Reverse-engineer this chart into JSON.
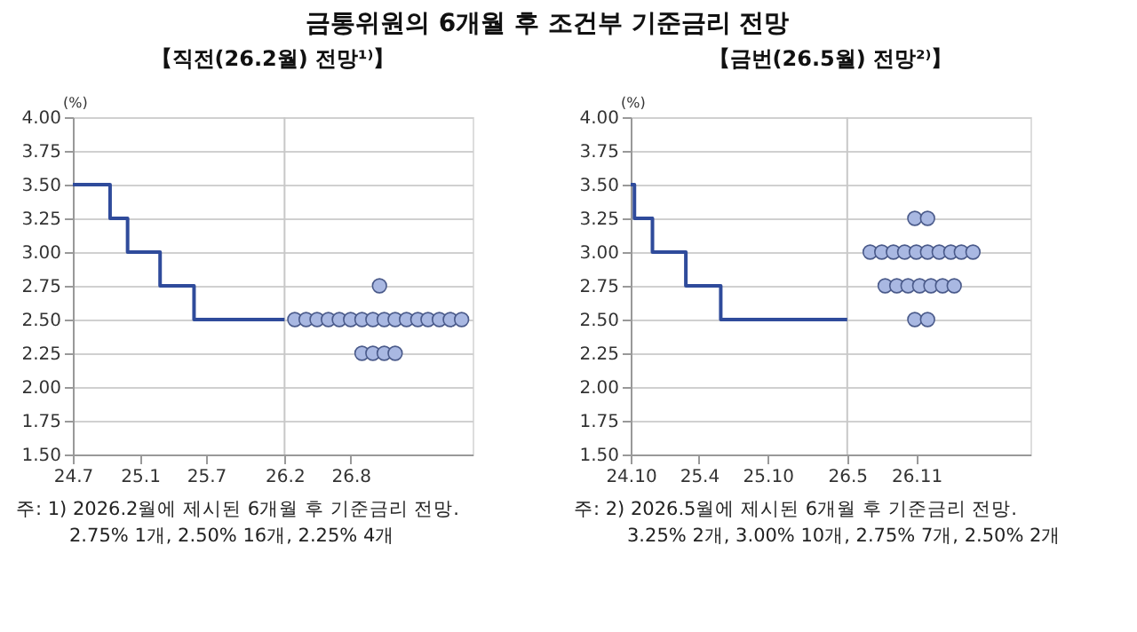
{
  "chart_data": [
    {
      "type": "step",
      "title": "금통위원의 6개월 후 조건부 기준금리 전망",
      "subtitle": "【직전(26.2월) 전망¹⁾】",
      "ylabel": "(%)",
      "xlim": [
        "2024-07-01",
        "2027-07-01"
      ],
      "xticks": [
        {
          "value": "2024-07",
          "label": "24.7"
        },
        {
          "value": "2025-01",
          "label": "25.1"
        },
        {
          "value": "2025-07",
          "label": "25.7"
        },
        {
          "value": "2026-02",
          "label": "26.2"
        },
        {
          "value": "2026-08",
          "label": "26.8"
        }
      ],
      "ylim": [
        1.5,
        4.0
      ],
      "yticks": [
        {
          "value": 1.5,
          "label": "1.50"
        },
        {
          "value": 1.75,
          "label": "1.75"
        },
        {
          "value": 2.0,
          "label": "2.00"
        },
        {
          "value": 2.25,
          "label": "2.25"
        },
        {
          "value": 2.5,
          "label": "2.50"
        },
        {
          "value": 2.75,
          "label": "2.75"
        },
        {
          "value": 3.0,
          "label": "3.00"
        },
        {
          "value": 3.25,
          "label": "3.25"
        },
        {
          "value": 3.5,
          "label": "3.50"
        },
        {
          "value": 3.75,
          "label": "3.75"
        },
        {
          "value": 4.0,
          "label": "4.00"
        }
      ],
      "grid": "y",
      "ref_lines": [
        {
          "axis": "x",
          "value": "2026-02",
          "color": "#c8c8c8"
        }
      ],
      "series": [
        {
          "color": "#2f4b9b",
          "x": [
            "2024-07-01",
            "2024-10-11",
            "2024-11-28",
            "2025-02-25",
            "2025-05-29",
            "2026-02-01"
          ],
          "values": [
            3.5,
            3.25,
            3.0,
            2.75,
            2.5,
            2.5
          ]
        },
        {
          "type": "scatter",
          "color": "#a9b8e2",
          "marker": "circle",
          "x": [
            "2026-03",
            "2026-04",
            "2026-05",
            "2026-06",
            "2026-07",
            "2026-08",
            "2026-09",
            "2026-10",
            "2026-11",
            "2026-12",
            "2027-01",
            "2027-02",
            "2027-03",
            "2027-04",
            "2027-05",
            "2027-06",
            "2026-10-19",
            "2026-09",
            "2026-10",
            "2026-11",
            "2026-12"
          ],
          "values": [
            2.5,
            2.5,
            2.5,
            2.5,
            2.5,
            2.5,
            2.5,
            2.5,
            2.5,
            2.5,
            2.5,
            2.5,
            2.5,
            2.5,
            2.5,
            2.5,
            2.75,
            2.25,
            2.25,
            2.25,
            2.25
          ]
        }
      ],
      "annotations": [
        "주: 1) 2026.2월에 제시된 6개월 후 기준금리 전망.",
        "2.75% 1개,  2.50% 16개,  2.25% 4개"
      ]
    },
    {
      "type": "step",
      "subtitle": "【금번(26.5월) 전망²⁾】",
      "ylabel": "(%)",
      "xlim": [
        "2024-10-01",
        "2027-09-01"
      ],
      "xticks": [
        {
          "value": "2024-10",
          "label": "24.10"
        },
        {
          "value": "2025-04",
          "label": "25.4"
        },
        {
          "value": "2025-10",
          "label": "25.10"
        },
        {
          "value": "2026-05",
          "label": "26.5"
        },
        {
          "value": "2026-11",
          "label": "26.11"
        }
      ],
      "ylim": [
        1.5,
        4.0
      ],
      "yticks": [
        {
          "value": 1.5,
          "label": "1.50"
        },
        {
          "value": 1.75,
          "label": "1.75"
        },
        {
          "value": 2.0,
          "label": "2.00"
        },
        {
          "value": 2.25,
          "label": "2.25"
        },
        {
          "value": 2.5,
          "label": "2.50"
        },
        {
          "value": 2.75,
          "label": "2.75"
        },
        {
          "value": 3.0,
          "label": "3.00"
        },
        {
          "value": 3.25,
          "label": "3.25"
        },
        {
          "value": 3.5,
          "label": "3.50"
        },
        {
          "value": 3.75,
          "label": "3.75"
        },
        {
          "value": 4.0,
          "label": "4.00"
        }
      ],
      "grid": "y",
      "ref_lines": [
        {
          "axis": "x",
          "value": "2026-05",
          "color": "#c8c8c8"
        }
      ],
      "series": [
        {
          "color": "#2f4b9b",
          "x": [
            "2024-10-01",
            "2024-10-11",
            "2024-11-28",
            "2025-02-25",
            "2025-05-29",
            "2026-05-01"
          ],
          "values": [
            3.5,
            3.25,
            3.0,
            2.75,
            2.5,
            2.5
          ]
        },
        {
          "type": "scatter",
          "color": "#a9b8e2",
          "marker": "circle",
          "x": [
            "2026-10-28",
            "2026-12-01",
            "2026-07",
            "2026-08",
            "2026-09",
            "2026-10",
            "2026-11",
            "2026-12",
            "2027-01",
            "2027-02",
            "2027-03",
            "2027-04",
            "2026-08-10",
            "2026-09-10",
            "2026-10-10",
            "2026-11-10",
            "2026-12-10",
            "2027-01-10",
            "2027-02-10",
            "2026-10-28",
            "2026-12-01"
          ],
          "values": [
            3.25,
            3.25,
            3.0,
            3.0,
            3.0,
            3.0,
            3.0,
            3.0,
            3.0,
            3.0,
            3.0,
            3.0,
            2.75,
            2.75,
            2.75,
            2.75,
            2.75,
            2.75,
            2.75,
            2.5,
            2.5
          ]
        }
      ],
      "annotations": [
        "주: 2) 2026.5월에 제시된 6개월 후 기준금리 전망.",
        "3.25% 2개,  3.00% 10개,  2.75% 7개,  2.50% 2개"
      ]
    }
  ]
}
